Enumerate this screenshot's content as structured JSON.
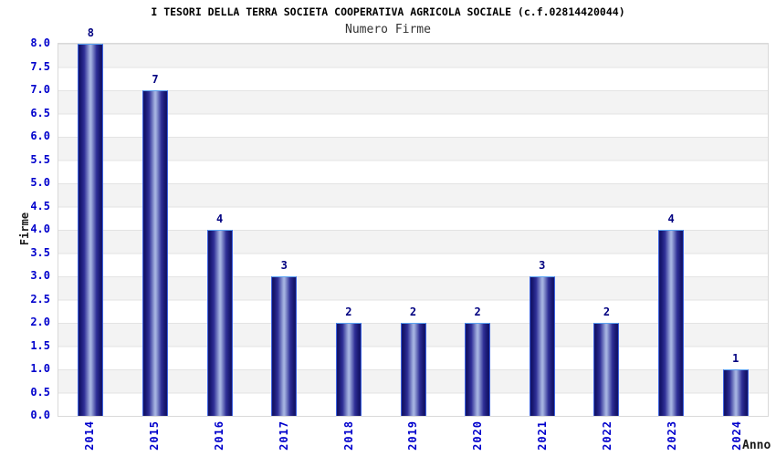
{
  "chart_data": {
    "type": "bar",
    "title": "I TESORI DELLA TERRA SOCIETA COOPERATIVA AGRICOLA SOCIALE (c.f.02814420044)",
    "subtitle": "Numero Firme",
    "xlabel": "Anno",
    "ylabel": "Firme",
    "categories": [
      "2014",
      "2015",
      "2016",
      "2017",
      "2018",
      "2019",
      "2020",
      "2021",
      "2022",
      "2023",
      "2024"
    ],
    "values": [
      8,
      7,
      4,
      3,
      2,
      2,
      2,
      3,
      2,
      4,
      1
    ],
    "ylim": [
      0,
      8
    ],
    "ytick_step": 0.5,
    "ytick_labels": [
      "8.0",
      "7.5",
      "7.0",
      "6.5",
      "6.0",
      "5.5",
      "5.0",
      "4.5",
      "4.0",
      "3.5",
      "3.0",
      "2.5",
      "2.0",
      "1.5",
      "1.0",
      "0.5",
      "0.0"
    ],
    "grid": "alternating gray/white horizontal bands every 0.5 units, topmost band gray",
    "legend": "none",
    "colors": {
      "bar_dark": "#15156b",
      "bar_mid": "#2e2e96",
      "bar_light": "#a3b1e0",
      "bar_border": "#3d63e0",
      "bar_border_top": "#5aa2f0",
      "tick_label": "#0000cc",
      "value_label": "#000080",
      "band_gray": "#f3f3f3",
      "band_white": "#ffffff",
      "gridline": "#e3e3e3",
      "plot_border": "#d9d9d9"
    }
  }
}
